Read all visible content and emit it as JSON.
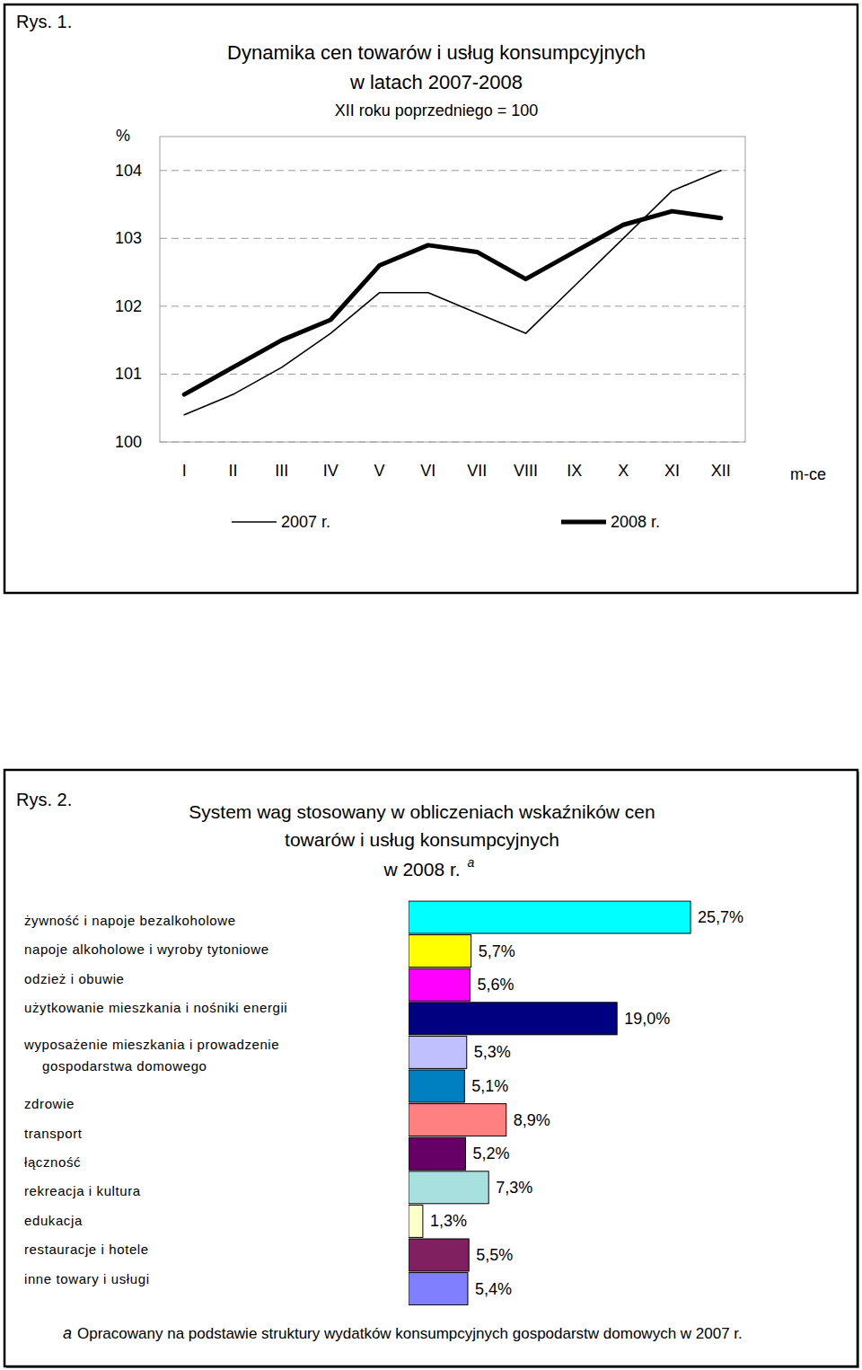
{
  "chart_data": [
    {
      "type": "line",
      "figure_label": "Rys. 1.",
      "title": "Dynamika cen towarów i usług konsumpcyjnych\nw latach 2007-2008",
      "subtitle": "XII roku poprzedniego = 100",
      "y_label": "%",
      "x_label": "m-ce",
      "categories": [
        "I",
        "II",
        "III",
        "IV",
        "V",
        "VI",
        "VII",
        "VIII",
        "IX",
        "X",
        "XI",
        "XII"
      ],
      "series": [
        {
          "name": "2007 r.",
          "color": "#000000",
          "line_style": "thin",
          "values": [
            100.4,
            100.7,
            101.1,
            101.6,
            102.2,
            102.2,
            101.9,
            101.6,
            102.3,
            103.0,
            103.7,
            104.0
          ]
        },
        {
          "name": "2008 r.",
          "color": "#000000",
          "line_style": "thick",
          "values": [
            100.7,
            101.1,
            101.5,
            101.8,
            102.6,
            102.9,
            102.8,
            102.4,
            102.8,
            103.2,
            103.4,
            103.3
          ]
        }
      ],
      "ylim": [
        100,
        104.5
      ],
      "yticks": [
        100,
        101,
        102,
        103,
        104
      ],
      "grid": true,
      "legend": "bottom"
    },
    {
      "type": "bar",
      "orientation": "horizontal",
      "figure_label": "Rys. 2.",
      "title": "System wag stosowany w obliczeniach wskaźników cen\ntowarów i usług konsumpcyjnych\nw 2008 r.",
      "title_note_marker": "a",
      "categories": [
        "żywność i napoje bezalkoholowe",
        "napoje alkoholowe i wyroby tytoniowe",
        "odzież i obuwie",
        "użytkowanie mieszkania i nośniki energii",
        "wyposażenie mieszkania i prowadzenie\ngospodarstwa domowego",
        "zdrowie",
        "transport",
        "łączność",
        "rekreacja i kultura",
        "edukacja",
        "restauracje i hotele",
        "inne towary i usługi"
      ],
      "values": [
        25.7,
        5.7,
        5.6,
        19.0,
        5.3,
        5.1,
        8.9,
        5.2,
        7.3,
        1.3,
        5.5,
        5.4
      ],
      "value_labels": [
        "25,7%",
        "5,7%",
        "5,6%",
        "19,0%",
        "5,3%",
        "5,1%",
        "8,9%",
        "5,2%",
        "7,3%",
        "1,3%",
        "5,5%",
        "5,4%"
      ],
      "colors": [
        "#00FFFF",
        "#FFFF00",
        "#FF00FF",
        "#000080",
        "#C0C0FF",
        "#0080C0",
        "#FF8080",
        "#660066",
        "#A8E0E0",
        "#FFFFCC",
        "#802060",
        "#8080FF"
      ],
      "xlim": [
        0,
        30
      ],
      "tick_labels": "y",
      "data_labels": true,
      "footnote": {
        "marker": "a",
        "text": "Opracowany na podstawie struktury wydatków konsumpcyjnych gospodarstw domowych w 2007 r."
      }
    }
  ]
}
